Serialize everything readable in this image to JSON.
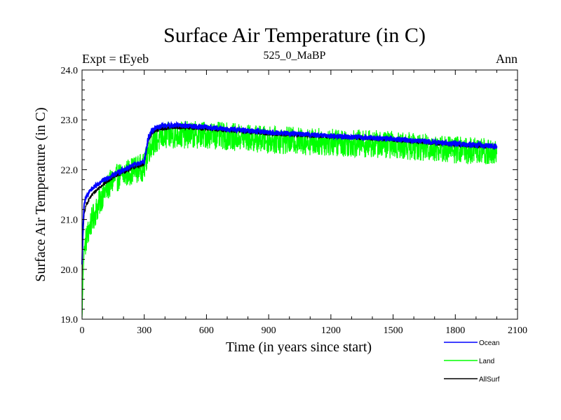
{
  "header": {
    "left": "Expt = tEyeb",
    "center": "525_0_MaBP",
    "right": "Ann"
  },
  "chart_data": {
    "type": "line",
    "title": "Surface Air Temperature (in C)",
    "xlabel": "Time (in years since start)",
    "ylabel": "Surface Air Temperature (in C)",
    "xlim": [
      0,
      2100
    ],
    "ylim": [
      19.0,
      24.0
    ],
    "xticks": [
      0,
      300,
      600,
      900,
      1200,
      1500,
      1800,
      2100
    ],
    "xtick_labels": [
      "0",
      "300",
      "600",
      "900",
      "1200",
      "1500",
      "1800",
      "2100"
    ],
    "yticks": [
      19.0,
      20.0,
      21.0,
      22.0,
      23.0,
      24.0
    ],
    "ytick_labels": [
      "19.0",
      "20.0",
      "21.0",
      "22.0",
      "23.0",
      "24.0"
    ],
    "grid": false,
    "legend_position": "bottom-right",
    "series": [
      {
        "name": "Land",
        "color": "#00ff00",
        "noise": 0.28,
        "x": [
          0,
          5,
          10,
          20,
          40,
          60,
          100,
          150,
          200,
          250,
          300,
          320,
          340,
          380,
          450,
          600,
          750,
          900,
          1200,
          1500,
          1800,
          2000
        ],
        "y": [
          19.0,
          19.9,
          20.4,
          20.6,
          20.9,
          21.1,
          21.5,
          21.8,
          21.9,
          22.0,
          22.05,
          22.4,
          22.55,
          22.65,
          22.7,
          22.7,
          22.65,
          22.6,
          22.55,
          22.5,
          22.4,
          22.35
        ]
      },
      {
        "name": "AllSurf",
        "color": "#000000",
        "noise": 0.04,
        "x": [
          0,
          5,
          10,
          20,
          40,
          60,
          100,
          150,
          200,
          250,
          300,
          320,
          340,
          380,
          450,
          600,
          750,
          900,
          1200,
          1500,
          1800,
          2000
        ],
        "y": [
          19.8,
          20.7,
          21.1,
          21.3,
          21.45,
          21.55,
          21.7,
          21.85,
          21.95,
          22.05,
          22.1,
          22.6,
          22.75,
          22.82,
          22.85,
          22.82,
          22.78,
          22.72,
          22.66,
          22.6,
          22.5,
          22.45
        ]
      },
      {
        "name": "Ocean",
        "color": "#0000ff",
        "noise": 0.05,
        "x": [
          0,
          5,
          10,
          20,
          40,
          60,
          100,
          150,
          200,
          250,
          300,
          320,
          340,
          380,
          450,
          600,
          750,
          900,
          1200,
          1500,
          1800,
          2000
        ],
        "y": [
          20.1,
          20.9,
          21.3,
          21.45,
          21.6,
          21.65,
          21.78,
          21.9,
          22.0,
          22.1,
          22.15,
          22.65,
          22.8,
          22.87,
          22.9,
          22.85,
          22.8,
          22.75,
          22.68,
          22.62,
          22.52,
          22.47
        ]
      }
    ],
    "legend": [
      {
        "name": "Ocean",
        "color": "#0000ff"
      },
      {
        "name": "Land",
        "color": "#00ff00"
      },
      {
        "name": "AllSurf",
        "color": "#000000"
      }
    ]
  }
}
